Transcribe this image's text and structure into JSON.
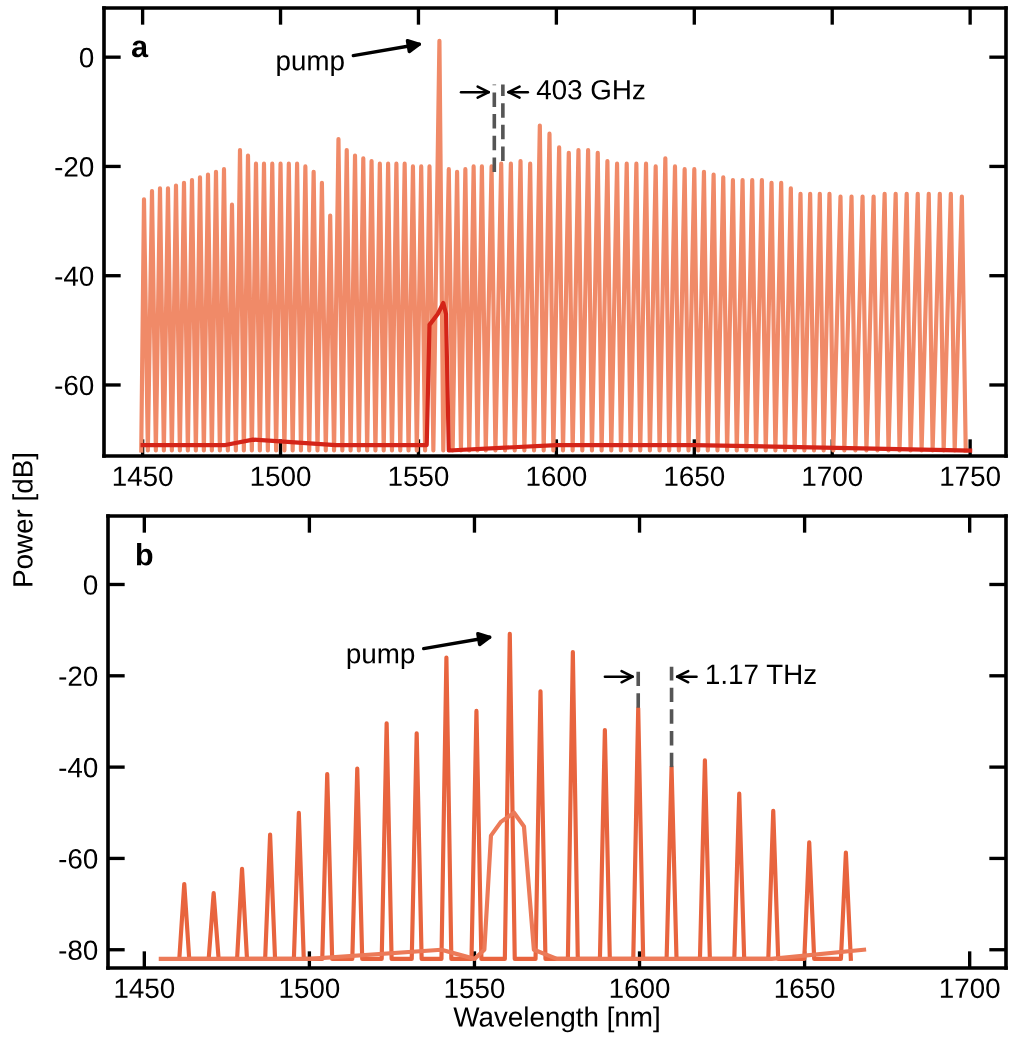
{
  "chart_data": [
    {
      "type": "line",
      "title": "a",
      "ylabel": "Power [dB]",
      "xlim": [
        1436,
        1763
      ],
      "ylim": [
        -73,
        9
      ],
      "xticks": [
        1450,
        1500,
        1550,
        1600,
        1650,
        1700,
        1750
      ],
      "yticks": [
        0,
        -20,
        -40,
        -60
      ],
      "grid": false,
      "legend": false,
      "marker": "none",
      "series": [
        {
          "color": "#f08a68",
          "line_style": "solid",
          "x": [
            1449.5,
            1450.5,
            1451.9,
            1453.4,
            1454.8,
            1456.3,
            1457.7,
            1459.2,
            1460.6,
            1462.1,
            1463.5,
            1465.0,
            1466.4,
            1467.9,
            1469.3,
            1470.8,
            1472.2,
            1473.7,
            1475.1,
            1476.6,
            1478.0,
            1479.5,
            1480.9,
            1482.4,
            1483.8,
            1485.3,
            1486.7,
            1488.2,
            1489.6,
            1491.1,
            1492.5,
            1494.0,
            1495.4,
            1497.0,
            1498.4,
            1500.0,
            1501.4,
            1503.0,
            1504.4,
            1506.0,
            1507.4,
            1509.0,
            1510.4,
            1512.0,
            1513.4,
            1515.0,
            1516.4,
            1518.0,
            1519.4,
            1521.0,
            1522.4,
            1524.0,
            1525.4,
            1527.0,
            1528.4,
            1530.0,
            1531.4,
            1533.0,
            1534.4,
            1536.0,
            1537.4,
            1539.0,
            1540.4,
            1542.0,
            1543.4,
            1545.0,
            1546.4,
            1548.0,
            1549.4,
            1551.0,
            1552.4,
            1554.0,
            1555.4,
            1557.6,
            1559.0,
            1561.0,
            1562.4,
            1564.0,
            1565.4,
            1567.0,
            1568.4,
            1570.0,
            1571.4,
            1573.0,
            1574.4,
            1576.5,
            1577.9,
            1580.0,
            1581.4,
            1583.5,
            1584.9,
            1587.0,
            1588.4,
            1590.5,
            1591.9,
            1594.0,
            1595.4,
            1597.5,
            1598.9,
            1601.0,
            1602.4,
            1604.5,
            1605.9,
            1608.0,
            1609.4,
            1611.5,
            1612.9,
            1615.0,
            1616.4,
            1618.5,
            1619.9,
            1622.0,
            1623.4,
            1625.5,
            1626.9,
            1629.0,
            1630.4,
            1632.5,
            1633.9,
            1636.0,
            1637.4,
            1639.5,
            1640.9,
            1643.0,
            1644.4,
            1646.5,
            1647.9,
            1650.0,
            1651.4,
            1653.5,
            1654.9,
            1657.0,
            1658.4,
            1660.5,
            1661.9,
            1664.0,
            1665.4,
            1667.5,
            1668.9,
            1671.0,
            1672.4,
            1674.5,
            1675.9,
            1678.0,
            1679.4,
            1681.5,
            1682.9,
            1685.0,
            1686.4,
            1688.5,
            1689.9,
            1692.0,
            1693.4,
            1695.5,
            1696.9,
            1699.0,
            1700.4,
            1703.0,
            1704.4,
            1707.0,
            1708.4,
            1711.0,
            1712.4,
            1715.0,
            1716.4,
            1719.0,
            1720.4,
            1723.0,
            1724.4,
            1727.0,
            1728.4,
            1731.0,
            1732.4,
            1735.0,
            1736.4,
            1739.0,
            1740.4,
            1743.0,
            1744.4,
            1747.0,
            1748.4
          ],
          "values": [
            -72,
            -26,
            -72,
            -24.5,
            -72,
            -24,
            -72,
            -24,
            -72,
            -23.5,
            -72,
            -23,
            -72,
            -22.5,
            -72,
            -22,
            -72,
            -21.5,
            -72,
            -21,
            -72,
            -20.5,
            -72,
            -27,
            -72,
            -17,
            -72,
            -18,
            -72,
            -19.5,
            -72,
            -19.5,
            -72,
            -19.5,
            -72,
            -19.5,
            -72,
            -19.5,
            -72,
            -19.5,
            -72,
            -20,
            -72,
            -21,
            -72,
            -23,
            -72,
            -29,
            -72,
            -15,
            -72,
            -17,
            -72,
            -18,
            -72,
            -18.5,
            -72,
            -19,
            -72,
            -19.5,
            -72,
            -19.5,
            -72,
            -19.5,
            -72,
            -19.5,
            -72,
            -20,
            -72,
            -20,
            -72,
            -20,
            -72,
            3,
            -72,
            -20.5,
            -72,
            -21,
            -72,
            -20.5,
            -72,
            -20,
            -72,
            -20,
            -72,
            -20,
            -72,
            -19.5,
            -72,
            -19.5,
            -72,
            -19,
            -72,
            -19.5,
            -72,
            -12.5,
            -72,
            -14,
            -72,
            -16.5,
            -72,
            -17.5,
            -72,
            -17,
            -72,
            -17,
            -72,
            -17.5,
            -72,
            -19,
            -72,
            -19.5,
            -72,
            -19.5,
            -72,
            -19.5,
            -72,
            -19.5,
            -72,
            -20,
            -72,
            -18.5,
            -72,
            -20,
            -72,
            -20.5,
            -72,
            -20.5,
            -72,
            -21,
            -72,
            -21.5,
            -72,
            -22,
            -72,
            -22.5,
            -72,
            -22.5,
            -72,
            -22.5,
            -72,
            -22.5,
            -72,
            -23,
            -72,
            -23,
            -72,
            -24,
            -72,
            -25,
            -72,
            -25,
            -72,
            -25,
            -72,
            -25,
            -72,
            -25.5,
            -72,
            -25.5,
            -72,
            -25.5,
            -72,
            -25.5,
            -72,
            -25,
            -72,
            -25,
            -72,
            -25,
            -72,
            -25,
            -72,
            -25,
            -72,
            -25,
            -72,
            -25,
            -72,
            -25.5,
            -72
          ]
        },
        {
          "color": "#d42418",
          "line_style": "solid",
          "x": [
            1450,
            1480,
            1490,
            1520,
            1553,
            1554,
            1557,
            1559,
            1560,
            1561,
            1600,
            1650,
            1750
          ],
          "values": [
            -71,
            -71,
            -70,
            -71,
            -71,
            -49,
            -47,
            -45,
            -47,
            -72,
            -71,
            -71,
            -72
          ]
        },
        {
          "color": "#555555",
          "line_style": "dashed",
          "x": [
            1577.5,
            1577.5
          ],
          "values": [
            -21,
            -5
          ]
        },
        {
          "color": "#555555",
          "line_style": "dashed",
          "x": [
            1580.6,
            1580.6
          ],
          "values": [
            -19,
            -5
          ]
        }
      ],
      "annotations": [
        "pump",
        "403 GHz"
      ]
    },
    {
      "type": "line",
      "title": "b",
      "xlabel": "Wavelength [nm]",
      "xlim": [
        1439,
        1711
      ],
      "ylim": [
        -84,
        15
      ],
      "xticks": [
        1450,
        1500,
        1550,
        1600,
        1650,
        1700
      ],
      "yticks": [
        0,
        -20,
        -40,
        -60,
        -80
      ],
      "grid": false,
      "legend": false,
      "marker": "none",
      "series": [
        {
          "color": "#e8643e",
          "line_style": "solid",
          "x": [
            1460.6,
            1462.1,
            1463.6,
            1469.5,
            1471.0,
            1472.5,
            1478.1,
            1479.6,
            1481.1,
            1486.6,
            1488.1,
            1489.6,
            1495.3,
            1496.8,
            1498.3,
            1503.9,
            1505.4,
            1506.9,
            1513.0,
            1514.5,
            1516.0,
            1521.9,
            1523.4,
            1524.9,
            1531.0,
            1532.5,
            1534.0,
            1540.0,
            1541.5,
            1543.0,
            1549.1,
            1550.6,
            1552.1,
            1559.2,
            1560.7,
            1562.2,
            1568.5,
            1570.0,
            1571.5,
            1578.3,
            1579.8,
            1581.3,
            1588.0,
            1589.5,
            1591.0,
            1598.1,
            1599.6,
            1601.1,
            1608.2,
            1609.7,
            1611.2,
            1618.3,
            1619.8,
            1621.3,
            1628.7,
            1630.2,
            1631.7,
            1639.0,
            1640.5,
            1642.0,
            1649.9,
            1651.4,
            1652.9,
            1661.0,
            1662.5,
            1664.0
          ],
          "values": [
            -82,
            -65.6,
            -82,
            -82,
            -67.6,
            -82,
            -82,
            -62.3,
            -82,
            -82,
            -54.8,
            -82,
            -82,
            -50,
            -82,
            -82,
            -41.5,
            -82,
            -82,
            -40.3,
            -82,
            -82,
            -30.4,
            -82,
            -82,
            -32.6,
            -82,
            -82,
            -16,
            -82,
            -82,
            -27.7,
            -82,
            -82,
            -10.8,
            -82,
            -82,
            -23.4,
            -82,
            -82,
            -14.8,
            -82,
            -82,
            -31.9,
            -82,
            -82,
            -27.1,
            -82,
            -82,
            -40,
            -82,
            -82,
            -38.5,
            -82,
            -82,
            -45.8,
            -82,
            -82,
            -49.6,
            -82,
            -82,
            -56.5,
            -82,
            -82,
            -58.7,
            -82
          ]
        },
        {
          "color": "#ec7a58",
          "line_style": "solid",
          "x": [
            1455,
            1480,
            1500,
            1540,
            1550,
            1553,
            1555,
            1558,
            1562,
            1565,
            1568,
            1575,
            1600,
            1640,
            1668
          ],
          "values": [
            -82,
            -82,
            -82,
            -80,
            -82,
            -80,
            -55,
            -52,
            -50,
            -53,
            -80,
            -82,
            -82,
            -82,
            -80
          ]
        },
        {
          "color": "#555555",
          "line_style": "dashed",
          "x": [
            1599.6,
            1599.6
          ],
          "values": [
            -27,
            -18
          ]
        },
        {
          "color": "#555555",
          "line_style": "dashed",
          "x": [
            1609.7,
            1609.7
          ],
          "values": [
            -40,
            -18
          ]
        }
      ],
      "annotations": [
        "pump",
        "1.17 THz"
      ]
    }
  ]
}
